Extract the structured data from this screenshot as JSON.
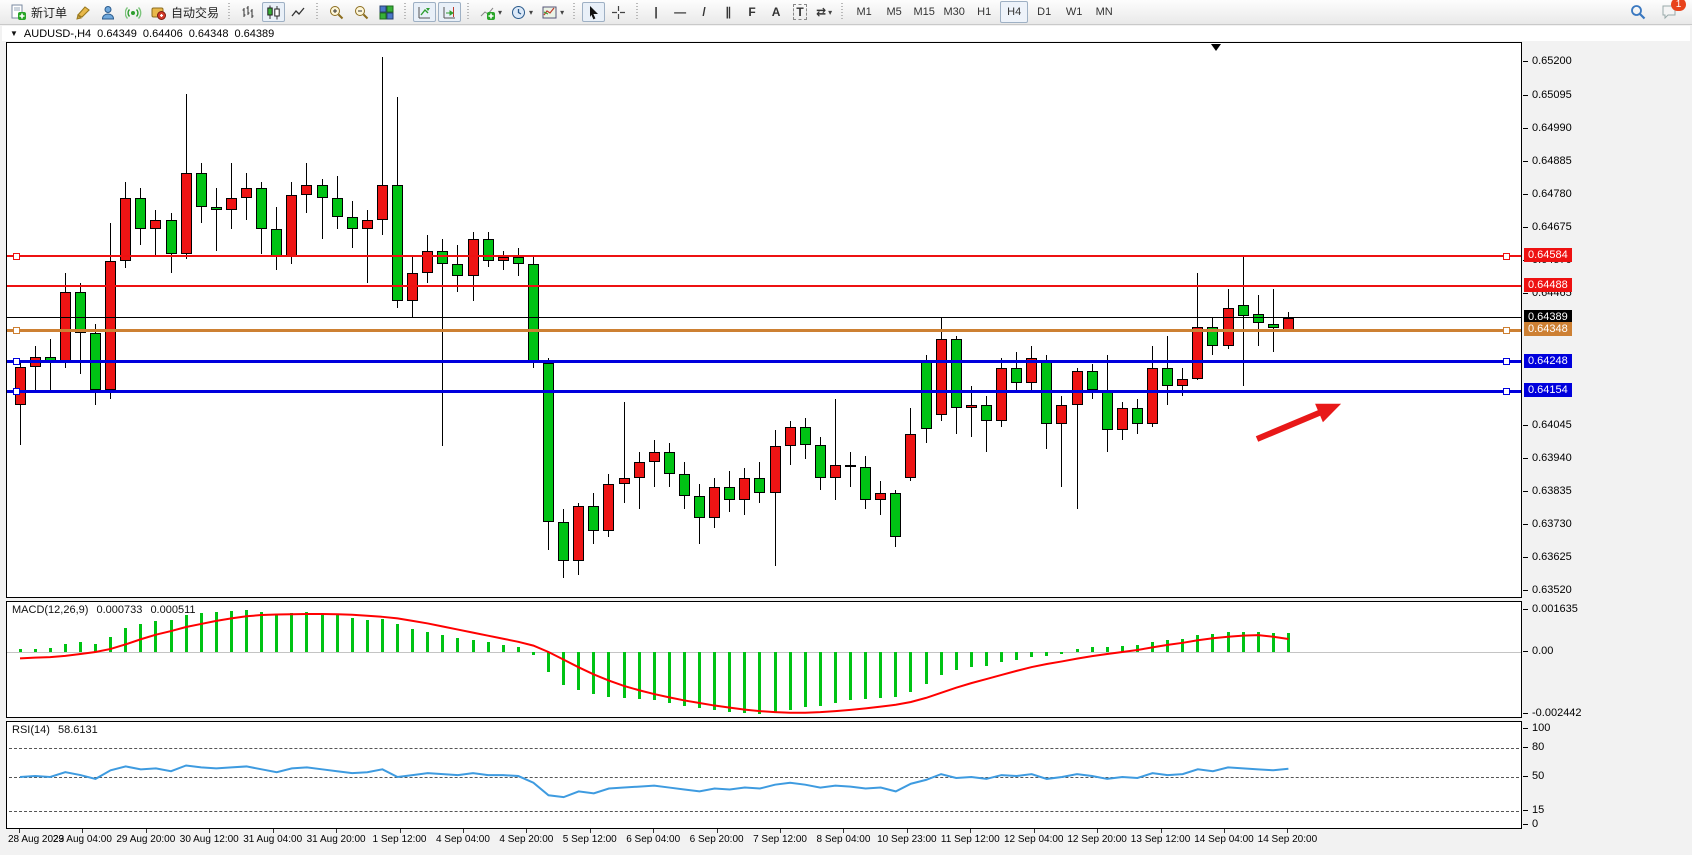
{
  "toolbar": {
    "new_order": "新订单",
    "auto_trading": "自动交易",
    "glyphs": {
      "dropdown": "▾",
      "title_triangle": "▼",
      "vline": "|",
      "hline": "—",
      "trendline": "/",
      "channel": "∥",
      "fibonacci": "F",
      "text": "A",
      "text_label": "T",
      "arrows_tool": "⇄"
    },
    "timeframes": [
      "M1",
      "M5",
      "M15",
      "M30",
      "H1",
      "H4",
      "D1",
      "W1",
      "MN"
    ],
    "active_timeframe": "H4",
    "chat_badge": "1"
  },
  "title_bar": {
    "symbol_period": "AUDUSD-,H4",
    "open": "0.64349",
    "high": "0.64406",
    "low": "0.64348",
    "close": "0.64389"
  },
  "price_axis": {
    "ticks": [
      "0.65200",
      "0.65095",
      "0.64990",
      "0.64885",
      "0.64780",
      "0.64675",
      "0.64570",
      "0.64465",
      "0.64045",
      "0.63940",
      "0.63835",
      "0.63730",
      "0.63625",
      "0.63520"
    ]
  },
  "price_tags": [
    {
      "text": "0.64584",
      "price": 0.64584,
      "bg": "#ee1111",
      "fg": "#ffffff"
    },
    {
      "text": "0.64488",
      "price": 0.64488,
      "bg": "#ee1111",
      "fg": "#ffffff"
    },
    {
      "text": "0.64389",
      "price": 0.64389,
      "bg": "#000000",
      "fg": "#ffffff"
    },
    {
      "text": "0.64348",
      "price": 0.64348,
      "bg": "#cd8033",
      "fg": "#ffffff"
    },
    {
      "text": "0.64248",
      "price": 0.64248,
      "bg": "#0000dd",
      "fg": "#ffffff"
    },
    {
      "text": "0.64154",
      "price": 0.64154,
      "bg": "#0000dd",
      "fg": "#ffffff"
    }
  ],
  "hlines": [
    {
      "price": 0.64584,
      "color": "#ee1111",
      "width": 2,
      "selected": true
    },
    {
      "price": 0.64488,
      "color": "#ee1111",
      "width": 2,
      "selected": false
    },
    {
      "price": 0.64389,
      "color": "#000000",
      "width": 1,
      "selected": false
    },
    {
      "price": 0.64348,
      "color": "#cd8033",
      "width": 3,
      "selected": true
    },
    {
      "price": 0.64248,
      "color": "#0000dd",
      "width": 3,
      "selected": true
    },
    {
      "price": 0.64154,
      "color": "#0000dd",
      "width": 3,
      "selected": true
    }
  ],
  "macd_panel": {
    "label": "MACD(12,26,9)",
    "value_main": "0.000733",
    "value_signal": "0.000511",
    "axis": [
      "0.001635",
      "0.00",
      "-0.002442"
    ]
  },
  "rsi_panel": {
    "label": "RSI(14)",
    "value": "58.6131",
    "axis": [
      "100",
      "80",
      "50",
      "15",
      "0"
    ],
    "levels": [
      80,
      50,
      15
    ]
  },
  "time_axis": [
    "28 Aug 2023",
    "29 Aug 04:00",
    "29 Aug 20:00",
    "30 Aug 12:00",
    "31 Aug 04:00",
    "31 Aug 20:00",
    "1 Sep 12:00",
    "4 Sep 04:00",
    "4 Sep 20:00",
    "5 Sep 12:00",
    "6 Sep 04:00",
    "6 Sep 20:00",
    "7 Sep 12:00",
    "8 Sep 04:00",
    "10 Sep 23:00",
    "11 Sep 12:00",
    "12 Sep 04:00",
    "12 Sep 20:00",
    "13 Sep 12:00",
    "14 Sep 04:00",
    "14 Sep 20:00"
  ],
  "annotations": {
    "trend_arrow": {
      "color": "#e81818",
      "direction": "up-right"
    }
  },
  "chart_data": {
    "type": "candlestick",
    "symbol": "AUDUSD-",
    "timeframe": "H4",
    "up_color": "#ee1414",
    "down_color": "#00c314",
    "ylim": [
      0.63495,
      0.65262
    ],
    "candles": [
      [
        0.6411,
        0.6425,
        0.63985,
        0.64233
      ],
      [
        0.64233,
        0.643,
        0.6415,
        0.64262
      ],
      [
        0.64262,
        0.6432,
        0.6416,
        0.6425
      ],
      [
        0.6425,
        0.6453,
        0.6423,
        0.6447
      ],
      [
        0.6447,
        0.645,
        0.6421,
        0.6434
      ],
      [
        0.6434,
        0.6437,
        0.6411,
        0.6416
      ],
      [
        0.6416,
        0.6469,
        0.6413,
        0.6457
      ],
      [
        0.6457,
        0.6482,
        0.64545,
        0.6477
      ],
      [
        0.6477,
        0.648,
        0.6462,
        0.6467
      ],
      [
        0.6467,
        0.6473,
        0.6458,
        0.647
      ],
      [
        0.647,
        0.6472,
        0.6453,
        0.6459
      ],
      [
        0.6459,
        0.651,
        0.64575,
        0.6485
      ],
      [
        0.6485,
        0.6488,
        0.6469,
        0.6474
      ],
      [
        0.6474,
        0.648,
        0.646,
        0.6473
      ],
      [
        0.6473,
        0.6488,
        0.6467,
        0.6477
      ],
      [
        0.6477,
        0.6485,
        0.647,
        0.648
      ],
      [
        0.648,
        0.6482,
        0.6459,
        0.6467
      ],
      [
        0.6467,
        0.6474,
        0.6454,
        0.6458
      ],
      [
        0.6458,
        0.6482,
        0.6456,
        0.6478
      ],
      [
        0.6478,
        0.6488,
        0.6472,
        0.6481
      ],
      [
        0.6481,
        0.6483,
        0.6464,
        0.6477
      ],
      [
        0.6477,
        0.6484,
        0.6467,
        0.6471
      ],
      [
        0.6471,
        0.6476,
        0.6461,
        0.6467
      ],
      [
        0.6467,
        0.6473,
        0.645,
        0.647
      ],
      [
        0.647,
        0.65219,
        0.6465,
        0.6481
      ],
      [
        0.6481,
        0.6509,
        0.6442,
        0.6444
      ],
      [
        0.6444,
        0.6458,
        0.6439,
        0.6453
      ],
      [
        0.6453,
        0.6465,
        0.645,
        0.646
      ],
      [
        0.646,
        0.6464,
        0.6398,
        0.6456
      ],
      [
        0.6456,
        0.6462,
        0.6447,
        0.6452
      ],
      [
        0.6452,
        0.6466,
        0.6444,
        0.6464
      ],
      [
        0.6464,
        0.6466,
        0.6455,
        0.6457
      ],
      [
        0.6457,
        0.646,
        0.6454,
        0.6458
      ],
      [
        0.6458,
        0.6461,
        0.6452,
        0.6456
      ],
      [
        0.6456,
        0.6458,
        0.6423,
        0.64245
      ],
      [
        0.64245,
        0.6426,
        0.6365,
        0.6374
      ],
      [
        0.6374,
        0.6378,
        0.6356,
        0.63615
      ],
      [
        0.63615,
        0.638,
        0.6357,
        0.6379
      ],
      [
        0.6379,
        0.6383,
        0.6367,
        0.6371
      ],
      [
        0.6371,
        0.6389,
        0.6369,
        0.6386
      ],
      [
        0.6386,
        0.6412,
        0.638,
        0.6388
      ],
      [
        0.6388,
        0.6396,
        0.6378,
        0.6393
      ],
      [
        0.6393,
        0.64,
        0.6385,
        0.6396
      ],
      [
        0.6396,
        0.6399,
        0.6385,
        0.6389
      ],
      [
        0.6389,
        0.6393,
        0.6378,
        0.6382
      ],
      [
        0.6382,
        0.6386,
        0.6367,
        0.6375
      ],
      [
        0.6375,
        0.6388,
        0.6372,
        0.6385
      ],
      [
        0.6385,
        0.639,
        0.6377,
        0.6381
      ],
      [
        0.6381,
        0.6391,
        0.6376,
        0.6388
      ],
      [
        0.6388,
        0.6393,
        0.638,
        0.6383
      ],
      [
        0.6383,
        0.6403,
        0.636,
        0.6398
      ],
      [
        0.6398,
        0.6406,
        0.6392,
        0.6404
      ],
      [
        0.6404,
        0.6407,
        0.6394,
        0.63985
      ],
      [
        0.63985,
        0.6401,
        0.6384,
        0.6388
      ],
      [
        0.6388,
        0.6413,
        0.6381,
        0.6392
      ],
      [
        0.6392,
        0.6396,
        0.6385,
        0.63915
      ],
      [
        0.63915,
        0.6395,
        0.6378,
        0.6381
      ],
      [
        0.6381,
        0.6387,
        0.6376,
        0.6383
      ],
      [
        0.6383,
        0.6384,
        0.6366,
        0.6369
      ],
      [
        0.6388,
        0.641,
        0.6387,
        0.6402
      ],
      [
        0.64255,
        0.6427,
        0.6399,
        0.64035
      ],
      [
        0.6408,
        0.6439,
        0.6406,
        0.6432
      ],
      [
        0.6432,
        0.6433,
        0.6402,
        0.641
      ],
      [
        0.641,
        0.6417,
        0.6401,
        0.6411
      ],
      [
        0.6411,
        0.6414,
        0.6396,
        0.6406
      ],
      [
        0.6406,
        0.6426,
        0.6404,
        0.6423
      ],
      [
        0.6423,
        0.6428,
        0.6415,
        0.6418
      ],
      [
        0.6418,
        0.643,
        0.6416,
        0.6426
      ],
      [
        0.6425,
        0.6427,
        0.6397,
        0.6405
      ],
      [
        0.6405,
        0.6414,
        0.6385,
        0.6411
      ],
      [
        0.6411,
        0.6423,
        0.6378,
        0.6422
      ],
      [
        0.6422,
        0.6424,
        0.6413,
        0.6416
      ],
      [
        0.6416,
        0.6427,
        0.6396,
        0.6403
      ],
      [
        0.6403,
        0.6412,
        0.64,
        0.641
      ],
      [
        0.641,
        0.6413,
        0.6402,
        0.6405
      ],
      [
        0.6405,
        0.643,
        0.6404,
        0.6423
      ],
      [
        0.6423,
        0.6433,
        0.6411,
        0.6417
      ],
      [
        0.6417,
        0.6423,
        0.6414,
        0.64195
      ],
      [
        0.64195,
        0.6453,
        0.6419,
        0.6436
      ],
      [
        0.6436,
        0.6439,
        0.6427,
        0.643
      ],
      [
        0.643,
        0.6448,
        0.6429,
        0.6442
      ],
      [
        0.6443,
        0.64585,
        0.6417,
        0.64395
      ],
      [
        0.644,
        0.6446,
        0.643,
        0.6437
      ],
      [
        0.6437,
        0.6448,
        0.6428,
        0.64355
      ],
      [
        0.64349,
        0.64406,
        0.64348,
        0.64389
      ]
    ],
    "indicators": [
      {
        "type": "MACD",
        "params": [
          12,
          26,
          9
        ],
        "histogram_color": "#00c314",
        "signal_color": "#ff0000",
        "ylim": [
          -0.00265,
          0.0018
        ],
        "histogram": [
          0.0001,
          0.00013,
          0.00016,
          0.0003,
          0.00038,
          0.00032,
          0.0006,
          0.00095,
          0.0011,
          0.0012,
          0.00126,
          0.00145,
          0.00152,
          0.00158,
          0.00161,
          0.00163,
          0.00158,
          0.0015,
          0.00152,
          0.00155,
          0.0015,
          0.00144,
          0.00135,
          0.00126,
          0.00128,
          0.0011,
          0.0009,
          0.0008,
          0.00068,
          0.00055,
          0.00048,
          0.00038,
          0.00028,
          0.00018,
          -0.0001,
          -0.0008,
          -0.0013,
          -0.0015,
          -0.00165,
          -0.00175,
          -0.0018,
          -0.00185,
          -0.0019,
          -0.002,
          -0.0021,
          -0.0022,
          -0.00228,
          -0.00235,
          -0.0024,
          -0.00244,
          -0.00238,
          -0.00228,
          -0.00215,
          -0.0021,
          -0.002,
          -0.0019,
          -0.00185,
          -0.0018,
          -0.00175,
          -0.00155,
          -0.00125,
          -0.0009,
          -0.0007,
          -0.0006,
          -0.00055,
          -0.0004,
          -0.0003,
          -0.00018,
          -0.00015,
          -8e-05,
          0.0001,
          0.0002,
          0.00018,
          0.00022,
          0.00026,
          0.0004,
          0.00048,
          0.00052,
          0.00068,
          0.00072,
          0.00078,
          0.0008,
          0.00078,
          0.00076,
          0.000733
        ],
        "signal": [
          -0.00025,
          -0.00022,
          -0.0002,
          -0.00015,
          -8e-05,
          0.0,
          0.00012,
          0.0003,
          0.0005,
          0.00068,
          0.00082,
          0.00098,
          0.0011,
          0.00122,
          0.00132,
          0.0014,
          0.00145,
          0.00147,
          0.00148,
          0.00149,
          0.00149,
          0.00148,
          0.00146,
          0.00142,
          0.00138,
          0.00132,
          0.00122,
          0.00112,
          0.001,
          0.00088,
          0.00076,
          0.00064,
          0.00052,
          0.0004,
          0.00025,
          0.0,
          -0.0003,
          -0.0006,
          -0.00088,
          -0.00112,
          -0.00133,
          -0.0015,
          -0.00165,
          -0.00178,
          -0.0019,
          -0.002,
          -0.0021,
          -0.00218,
          -0.00226,
          -0.00232,
          -0.00236,
          -0.00238,
          -0.00238,
          -0.00236,
          -0.00232,
          -0.00227,
          -0.00221,
          -0.00214,
          -0.00207,
          -0.00196,
          -0.0018,
          -0.0016,
          -0.0014,
          -0.00122,
          -0.00106,
          -0.0009,
          -0.00074,
          -0.00059,
          -0.00047,
          -0.00037,
          -0.00026,
          -0.00016,
          -8e-05,
          0.0,
          8e-05,
          0.00018,
          0.00028,
          0.00036,
          0.00046,
          0.00054,
          0.0006,
          0.00064,
          0.00066,
          0.0006,
          0.000511
        ]
      },
      {
        "type": "RSI",
        "params": [
          14
        ],
        "color": "#3e9be0",
        "ylim": [
          0,
          100
        ],
        "values": [
          50,
          51,
          50,
          55,
          52,
          48,
          57,
          61,
          58,
          59,
          56,
          62,
          60,
          59,
          60,
          61,
          58,
          55,
          59,
          60,
          58,
          56,
          54,
          55,
          58,
          50,
          52,
          54,
          53,
          52,
          54,
          52,
          52,
          51,
          44,
          31,
          29,
          35,
          33,
          38,
          39,
          40,
          41,
          39,
          37,
          35,
          38,
          37,
          39,
          38,
          42,
          44,
          42,
          39,
          41,
          40,
          38,
          39,
          35,
          43,
          47,
          53,
          49,
          50,
          48,
          52,
          51,
          53,
          48,
          50,
          53,
          51,
          48,
          50,
          49,
          54,
          52,
          53,
          58,
          56,
          60,
          59,
          58,
          57,
          58.6
        ]
      }
    ]
  }
}
